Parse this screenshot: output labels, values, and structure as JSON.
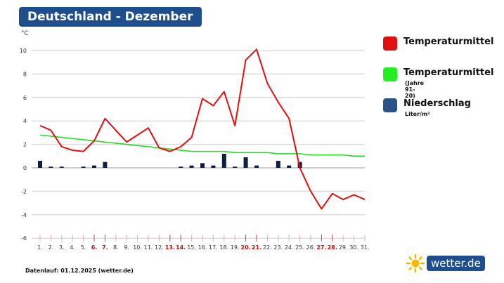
{
  "header": {
    "title": "Deutschland - Dezember"
  },
  "chart_data": {
    "type": "line",
    "ylabel": "°C",
    "ylim": [
      -6,
      10
    ],
    "yticks": [
      10,
      8,
      6,
      4,
      2,
      0,
      -2,
      -4,
      -6
    ],
    "grid": true,
    "legend_placement": "right",
    "categories": [
      "1.",
      "2.",
      "3.",
      "4.",
      "5.",
      "6.",
      "7.",
      "8.",
      "9.",
      "10.",
      "11.",
      "12.",
      "13.",
      "14.",
      "15.",
      "16.",
      "17.",
      "18.",
      "19.",
      "20.",
      "21.",
      "22.",
      "23.",
      "24.",
      "25.",
      "26.",
      "27.",
      "28.",
      "29.",
      "30.",
      "31."
    ],
    "weekend_days": [
      6,
      7,
      13,
      14,
      20,
      21,
      27,
      28
    ],
    "series": [
      {
        "name": "Temperaturmittel",
        "type": "line",
        "color": "#e01010",
        "values": [
          3.6,
          3.2,
          1.8,
          1.5,
          1.4,
          2.3,
          4.2,
          3.2,
          2.2,
          2.8,
          3.4,
          1.7,
          1.4,
          1.8,
          2.6,
          5.9,
          5.3,
          6.5,
          3.6,
          9.2,
          10.1,
          7.2,
          5.6,
          4.2,
          0.0,
          -2.0,
          -3.5,
          -2.2,
          -2.7,
          -2.3,
          -2.7
        ]
      },
      {
        "name": "Temperaturmittel",
        "sub": "(Jahre 91-20)",
        "type": "line",
        "color": "#22dd22",
        "values": [
          2.8,
          2.7,
          2.6,
          2.5,
          2.4,
          2.3,
          2.2,
          2.1,
          2.0,
          1.9,
          1.8,
          1.7,
          1.6,
          1.5,
          1.4,
          1.4,
          1.4,
          1.4,
          1.3,
          1.3,
          1.3,
          1.3,
          1.2,
          1.2,
          1.2,
          1.1,
          1.1,
          1.1,
          1.1,
          1.0,
          1.0
        ]
      },
      {
        "name": "Niederschlag",
        "sub": "Liter/m²",
        "type": "bar",
        "color": "#0e1f3f",
        "legend_color": "#2a5288",
        "values": [
          0.6,
          0.1,
          0.1,
          0,
          0.1,
          0.2,
          0.5,
          0,
          0,
          0,
          0,
          0,
          0,
          0.1,
          0.2,
          0.4,
          0.2,
          1.2,
          0.1,
          0.9,
          0.2,
          0,
          0.6,
          0.2,
          0.5,
          0,
          0,
          0,
          0,
          0,
          0
        ]
      }
    ]
  },
  "footer": {
    "text": "Datenlauf: 01.12.2025 (wetter.de)"
  },
  "logo": {
    "text": "wetter.de"
  }
}
